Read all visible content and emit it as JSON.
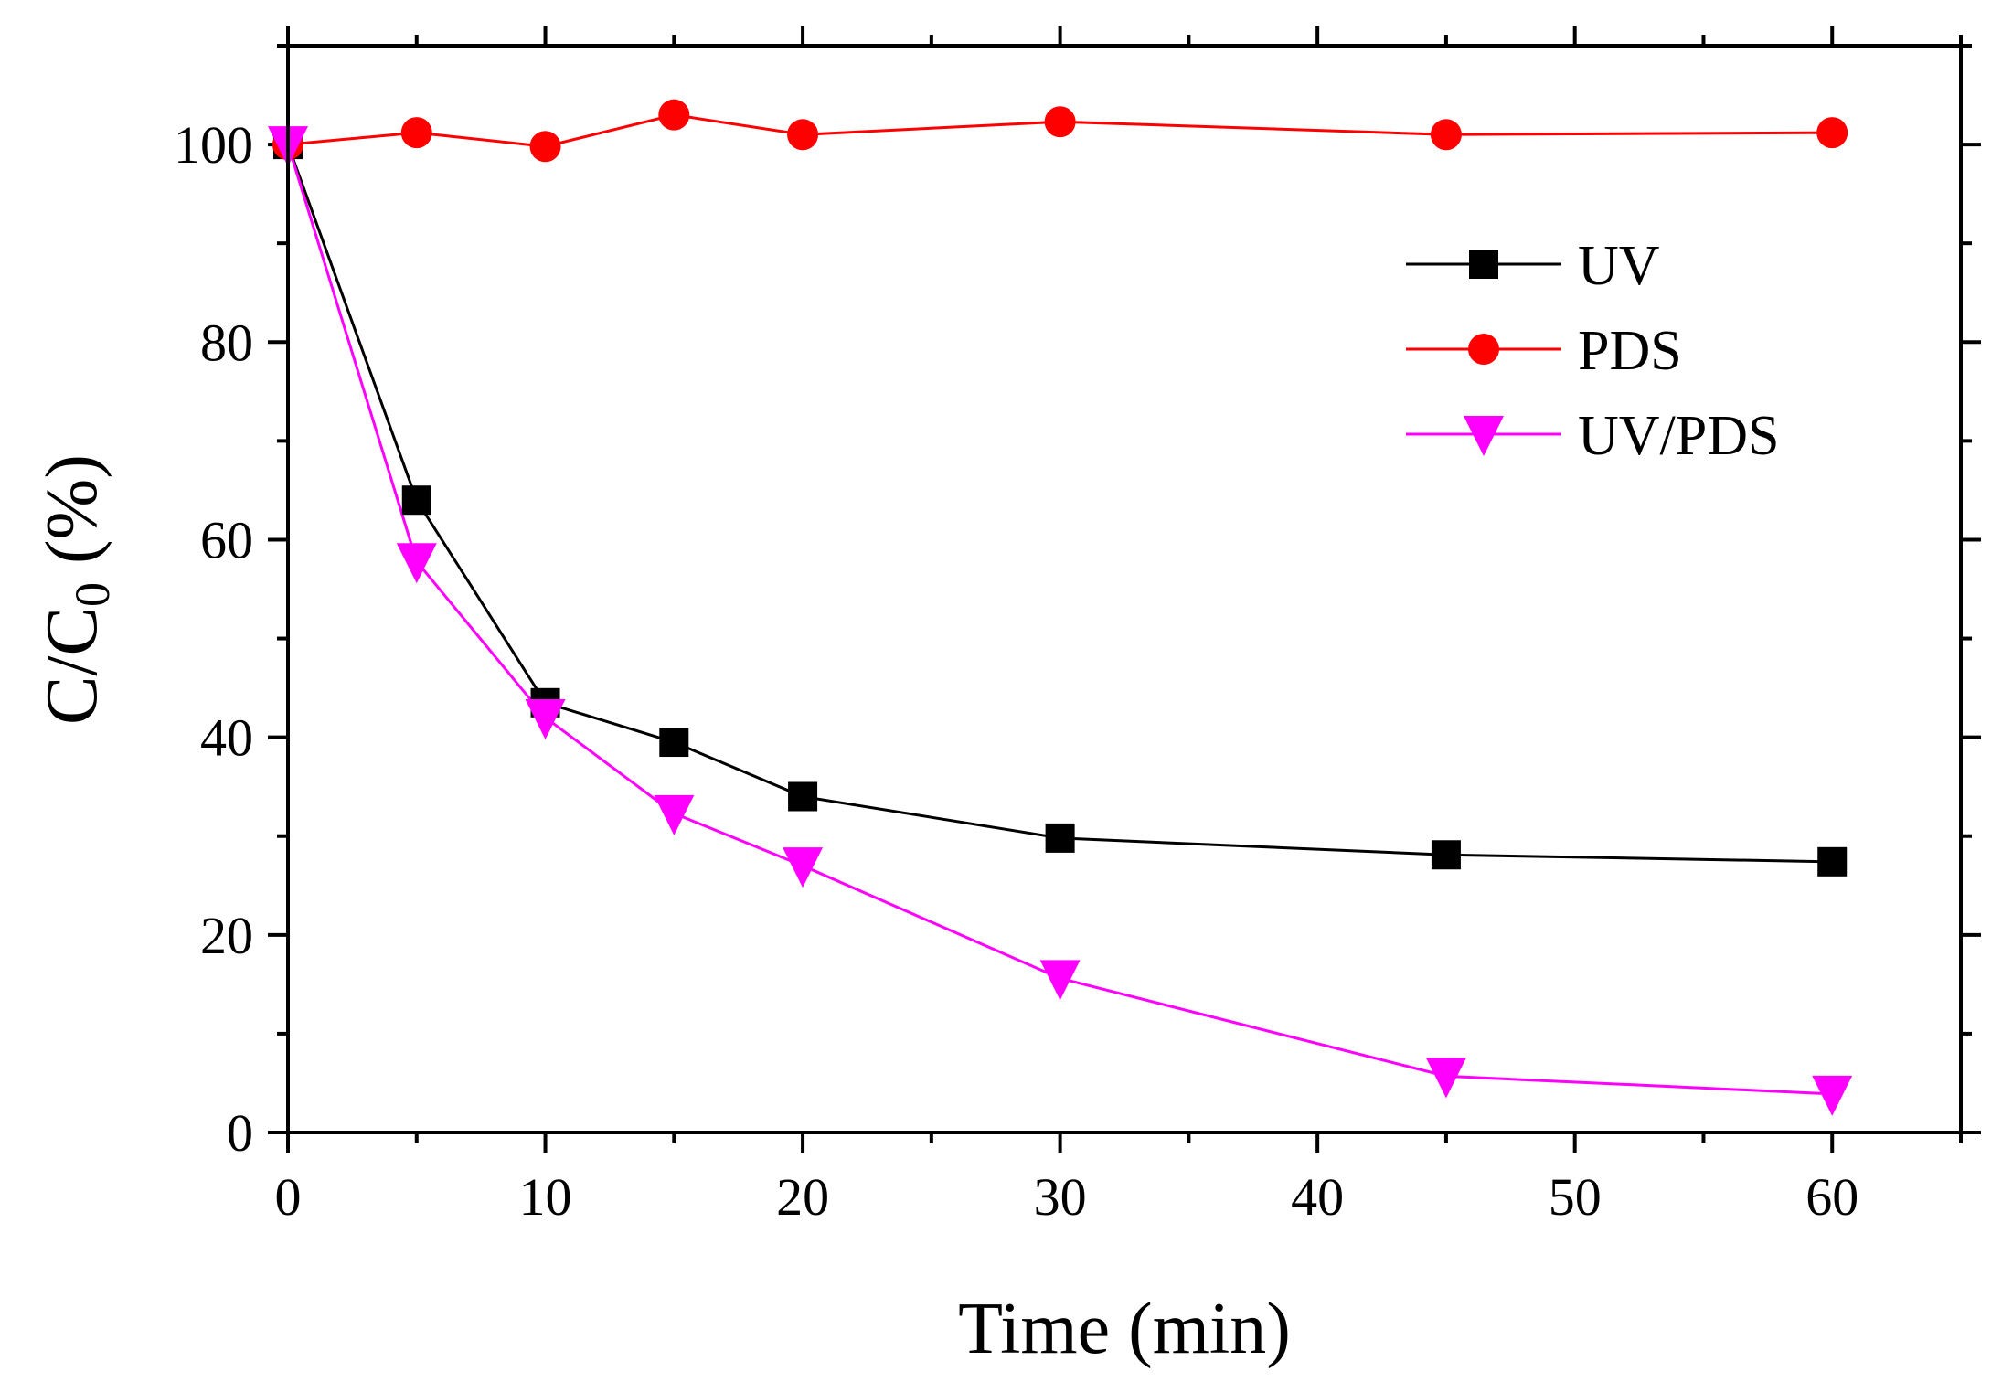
{
  "chart_data": {
    "type": "line",
    "title": "",
    "xlabel": "Time (min)",
    "ylabel": {
      "main": "C/C",
      "sub": "0",
      "suffix": " (%)"
    },
    "xlim": [
      0,
      65
    ],
    "ylim": [
      0,
      110
    ],
    "xticks": [
      0,
      10,
      20,
      30,
      40,
      50,
      60
    ],
    "yticks": [
      0,
      20,
      40,
      60,
      80,
      100
    ],
    "xminor": [
      5,
      15,
      25,
      35,
      45,
      55,
      65
    ],
    "yminor": [
      10,
      30,
      50,
      70,
      90,
      110
    ],
    "grid": false,
    "legend_position": "upper-right",
    "x": [
      0,
      5,
      10,
      15,
      20,
      30,
      45,
      60
    ],
    "series": [
      {
        "name": "UV",
        "marker": "square",
        "color": "#000000",
        "values": [
          100,
          64.0,
          43.5,
          39.5,
          34.0,
          29.8,
          28.1,
          27.4
        ]
      },
      {
        "name": "PDS",
        "marker": "circle",
        "color": "#ff0000",
        "values": [
          100,
          101.2,
          99.8,
          103.0,
          101.0,
          102.3,
          101.0,
          101.2
        ]
      },
      {
        "name": "UV/PDS",
        "marker": "triangle-down",
        "color": "#ff00ff",
        "values": [
          100,
          57.8,
          42.0,
          32.3,
          27.0,
          15.6,
          5.7,
          3.9
        ]
      }
    ]
  }
}
